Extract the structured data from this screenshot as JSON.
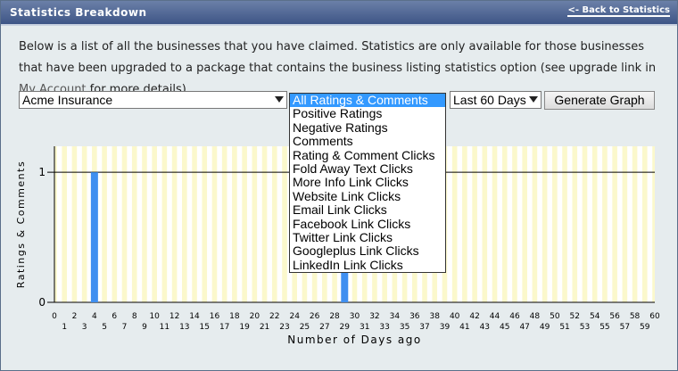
{
  "header": {
    "title": "Statistics Breakdown",
    "back_link": "<- Back to Statistics"
  },
  "intro": {
    "text_before": "Below is a list of all the businesses that you have claimed. Statistics are only available for those businesses that have been upgraded to a package that contains the business listing statistics option (see upgrade link in ",
    "link": "My Account",
    "text_after": " for more details)."
  },
  "controls": {
    "business": "Acme Insurance",
    "period": "Last 60 Days",
    "button": "Generate Graph"
  },
  "dropdown_options": [
    "All Ratings & Comments",
    "Positive Ratings",
    "Negative Ratings",
    "Comments",
    "Rating & Comment Clicks",
    "Fold Away Text Clicks",
    "More Info Link Clicks",
    "Website Link Clicks",
    "Email Link Clicks",
    "Facebook Link Clicks",
    "Twitter Link Clicks",
    "Googleplus Link Clicks",
    "LinkedIn Link Clicks"
  ],
  "chart": {
    "type": "bar",
    "y_label": "Ratings & Comments",
    "x_label": "Number of Days ago",
    "x": [
      0,
      1,
      2,
      3,
      4,
      5,
      6,
      7,
      8,
      9,
      10,
      11,
      12,
      13,
      14,
      15,
      16,
      17,
      18,
      19,
      20,
      21,
      22,
      23,
      24,
      25,
      26,
      27,
      28,
      29,
      30,
      31,
      32,
      33,
      34,
      35,
      36,
      37,
      38,
      39,
      40,
      41,
      42,
      43,
      44,
      45,
      46,
      47,
      48,
      49,
      50,
      51,
      52,
      53,
      54,
      55,
      56,
      57,
      58,
      59,
      60
    ],
    "values": [
      0,
      0,
      0,
      0,
      1,
      0,
      0,
      0,
      0,
      0,
      0,
      0,
      0,
      0,
      0,
      0,
      0,
      0,
      0,
      0,
      0,
      0,
      0,
      0,
      0,
      0,
      0,
      0,
      0,
      1,
      0,
      0,
      0,
      0,
      0,
      0,
      0,
      0,
      0,
      0,
      0,
      0,
      0,
      0,
      0,
      0,
      0,
      0,
      0,
      0,
      0,
      0,
      0,
      0,
      0,
      0,
      0,
      0,
      0,
      0,
      0
    ],
    "color": "#3f8ff0",
    "xlim": [
      0,
      60
    ],
    "ylim": [
      0,
      1.2
    ],
    "yticks": [
      0,
      1
    ]
  }
}
